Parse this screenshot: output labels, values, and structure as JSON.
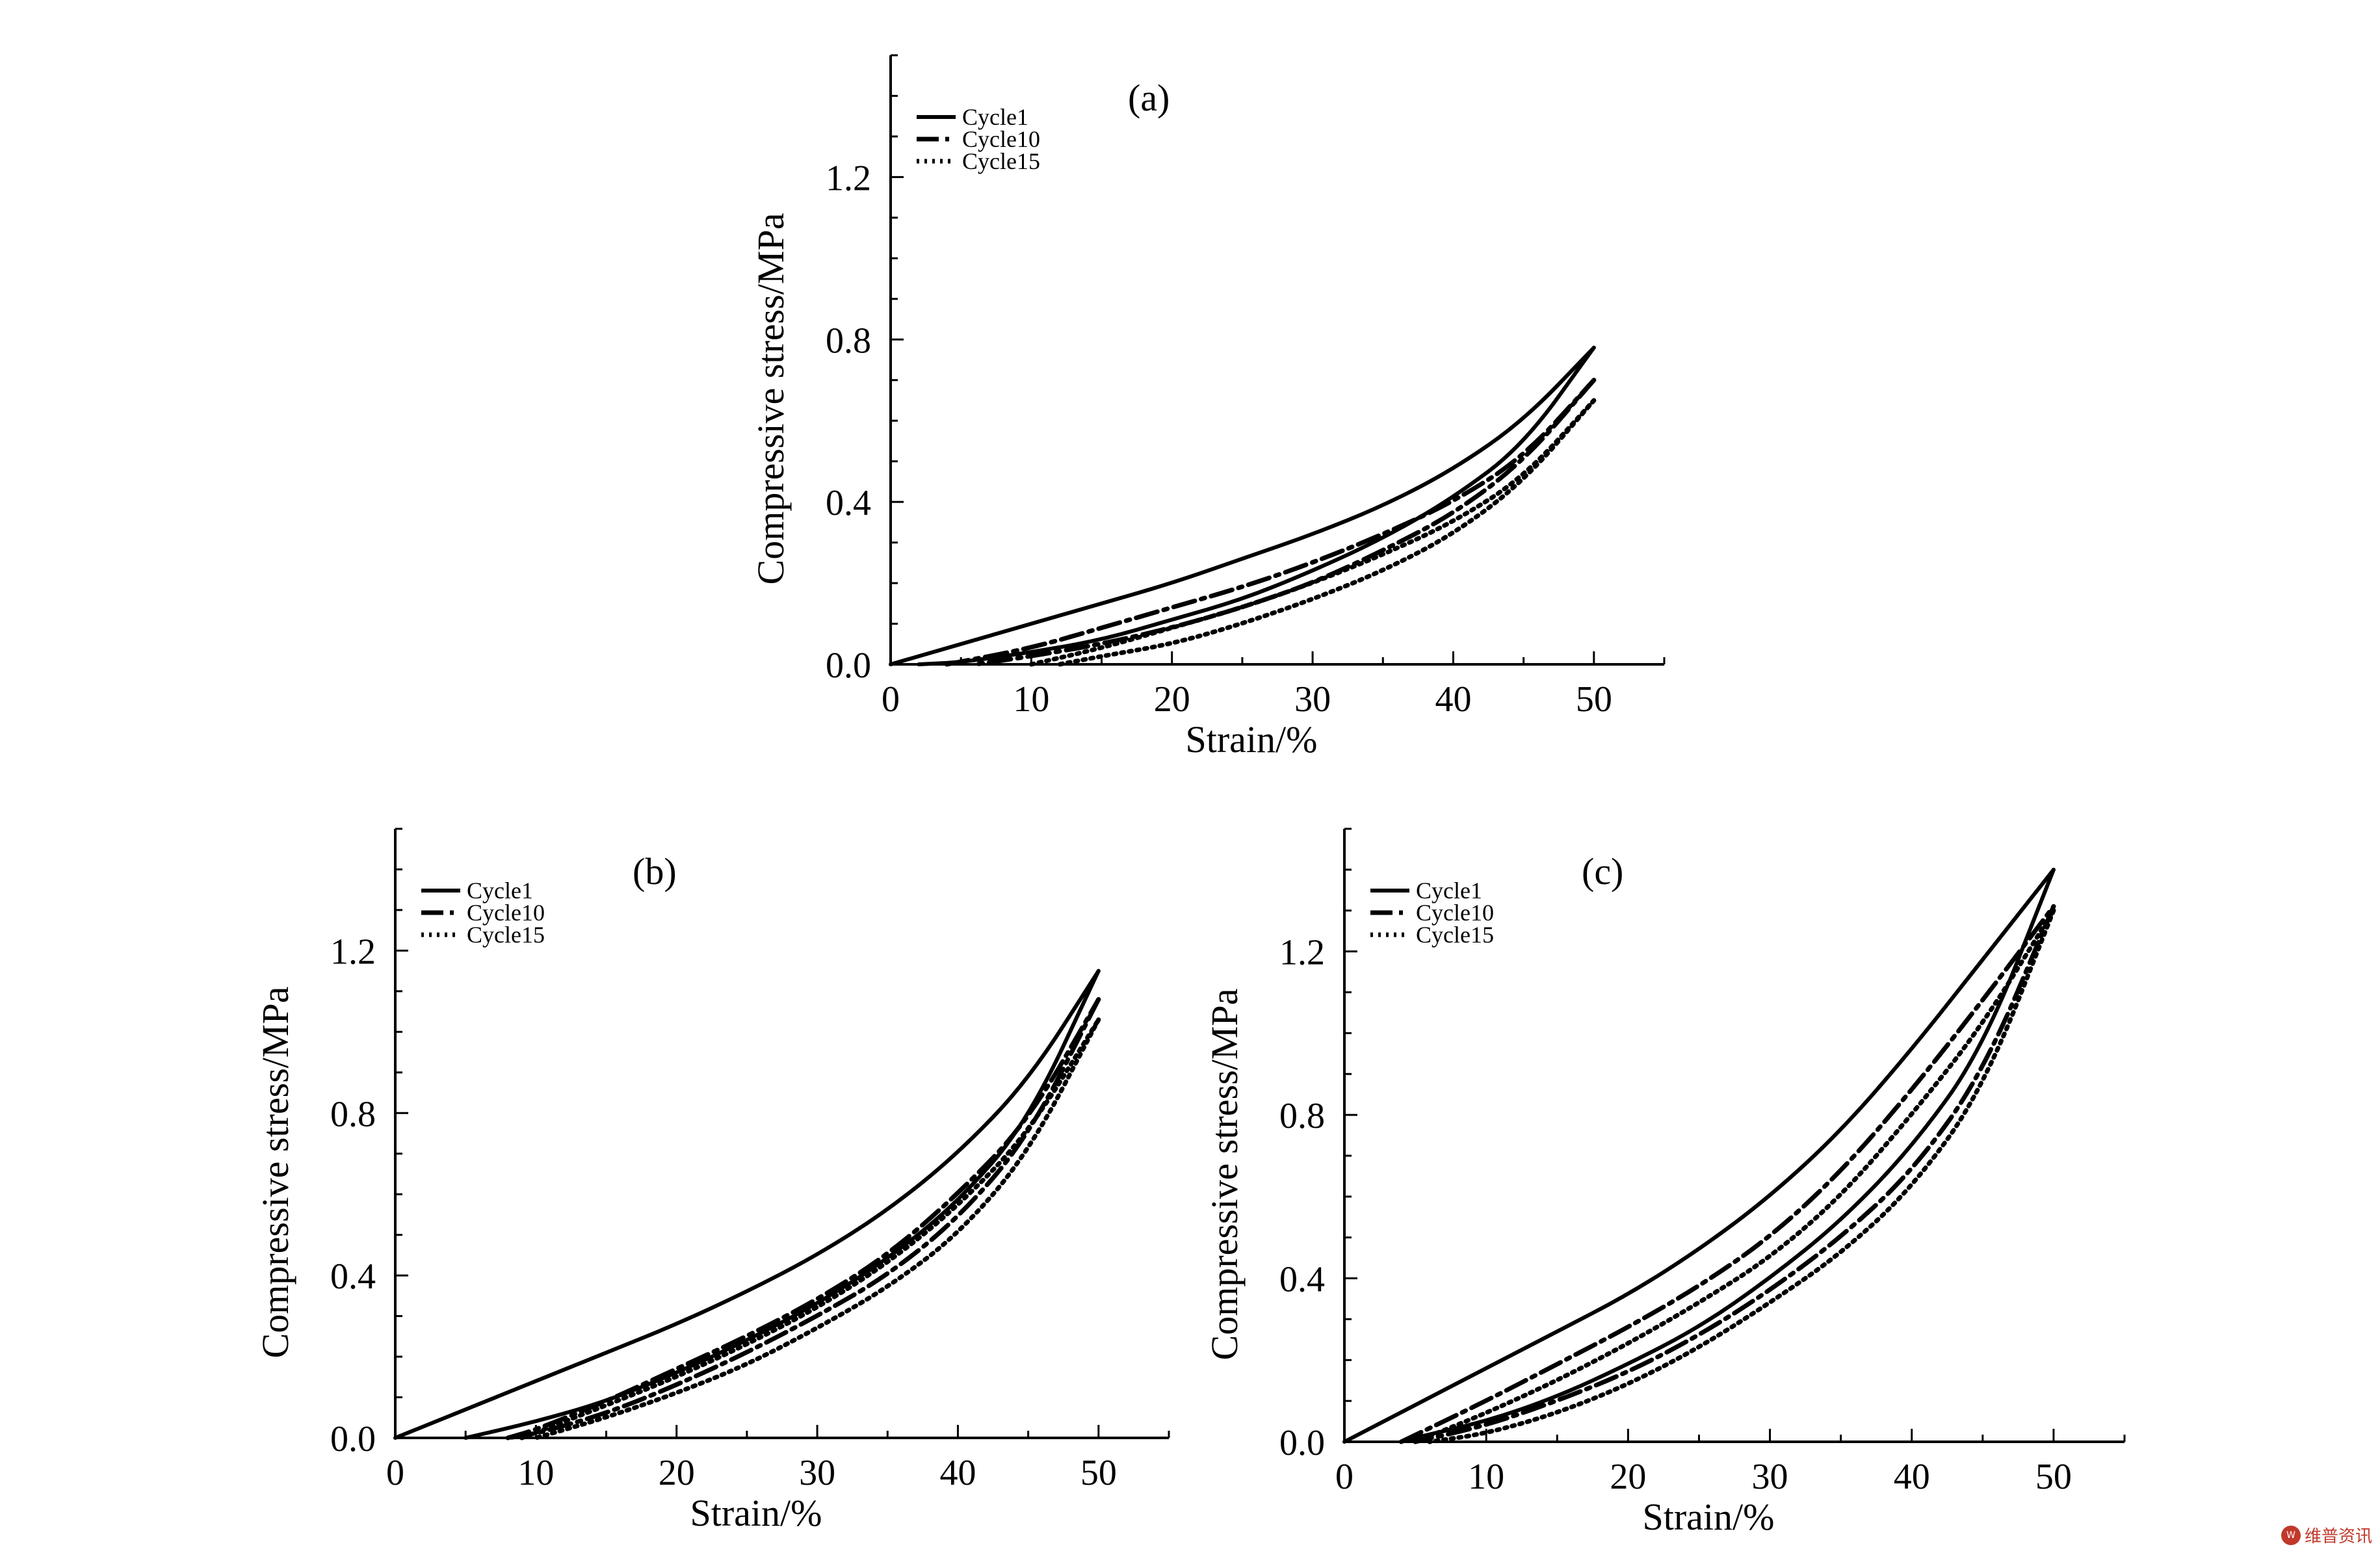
{
  "figure": {
    "watermark": {
      "badge": "W",
      "text": "维普资讯"
    }
  },
  "chart_data": [
    {
      "panel_label": "(a)",
      "type": "line",
      "xlabel": "Strain/%",
      "ylabel": "Compressive stress/MPa",
      "xlim": [
        0,
        55
      ],
      "ylim": [
        0,
        1.5
      ],
      "xticks": [
        0,
        10,
        20,
        30,
        40,
        50
      ],
      "yticks": [
        0.0,
        0.4,
        0.8,
        1.2
      ],
      "ytick_labels": [
        "0.0",
        "0.4",
        "0.8",
        "1.2"
      ],
      "grid": false,
      "legend_position": "top-left",
      "series": [
        {
          "name": "Cycle1",
          "style": "solid",
          "loading": {
            "x": [
              0,
              5,
              10,
              15,
              20,
              25,
              30,
              35,
              40,
              45,
              50
            ],
            "y": [
              0,
              0.05,
              0.1,
              0.15,
              0.2,
              0.26,
              0.32,
              0.39,
              0.48,
              0.6,
              0.78
            ]
          },
          "unloading": {
            "x": [
              50,
              45,
              40,
              35,
              30,
              25,
              20,
              15,
              10,
              5,
              2
            ],
            "y": [
              0.78,
              0.54,
              0.41,
              0.31,
              0.23,
              0.16,
              0.11,
              0.06,
              0.03,
              0.005,
              0
            ]
          }
        },
        {
          "name": "Cycle10",
          "style": "dash-dot",
          "loading": {
            "x": [
              4,
              10,
              15,
              20,
              25,
              30,
              35,
              40,
              45,
              50
            ],
            "y": [
              0,
              0.04,
              0.09,
              0.14,
              0.19,
              0.25,
              0.32,
              0.4,
              0.51,
              0.7
            ]
          },
          "unloading": {
            "x": [
              50,
              45,
              40,
              35,
              30,
              25,
              20,
              15,
              10,
              6
            ],
            "y": [
              0.7,
              0.5,
              0.37,
              0.28,
              0.2,
              0.14,
              0.09,
              0.05,
              0.02,
              0
            ]
          }
        },
        {
          "name": "Cycle15",
          "style": "dotted",
          "loading": {
            "x": [
              10,
              15,
              20,
              25,
              30,
              35,
              40,
              45,
              50
            ],
            "y": [
              0,
              0.04,
              0.09,
              0.14,
              0.2,
              0.27,
              0.35,
              0.46,
              0.65
            ]
          },
          "unloading": {
            "x": [
              50,
              45,
              40,
              35,
              30,
              25,
              20,
              15,
              12
            ],
            "y": [
              0.65,
              0.45,
              0.32,
              0.23,
              0.16,
              0.1,
              0.05,
              0.02,
              0
            ]
          }
        }
      ]
    },
    {
      "panel_label": "(b)",
      "type": "line",
      "xlabel": "Strain/%",
      "ylabel": "Compressive stress/MPa",
      "xlim": [
        0,
        55
      ],
      "ylim": [
        0,
        1.5
      ],
      "xticks": [
        0,
        10,
        20,
        30,
        40,
        50
      ],
      "yticks": [
        0.0,
        0.4,
        0.8,
        1.2
      ],
      "ytick_labels": [
        "0.0",
        "0.4",
        "0.8",
        "1.2"
      ],
      "grid": false,
      "legend_position": "top-left",
      "series": [
        {
          "name": "Cycle1",
          "style": "solid",
          "loading": {
            "x": [
              0,
              5,
              10,
              15,
              20,
              25,
              30,
              35,
              40,
              45,
              50
            ],
            "y": [
              0,
              0.07,
              0.14,
              0.21,
              0.28,
              0.36,
              0.45,
              0.56,
              0.7,
              0.88,
              1.15
            ]
          },
          "unloading": {
            "x": [
              50,
              45,
              40,
              35,
              30,
              25,
              20,
              15,
              10,
              5
            ],
            "y": [
              1.15,
              0.78,
              0.58,
              0.44,
              0.33,
              0.24,
              0.16,
              0.09,
              0.04,
              0
            ]
          }
        },
        {
          "name": "Cycle10",
          "style": "dash-dot",
          "loading": {
            "x": [
              8,
              10,
              15,
              20,
              25,
              30,
              35,
              40,
              45,
              50
            ],
            "y": [
              0,
              0.02,
              0.09,
              0.17,
              0.25,
              0.34,
              0.45,
              0.6,
              0.78,
              1.08
            ]
          },
          "unloading": {
            "x": [
              50,
              45,
              40,
              35,
              30,
              25,
              20,
              15,
              10,
              8
            ],
            "y": [
              1.08,
              0.74,
              0.54,
              0.4,
              0.3,
              0.21,
              0.13,
              0.06,
              0.01,
              0
            ]
          }
        },
        {
          "name": "Cycle15",
          "style": "dotted",
          "loading": {
            "x": [
              9,
              15,
              20,
              25,
              30,
              35,
              40,
              45,
              50
            ],
            "y": [
              0,
              0.08,
              0.15,
              0.23,
              0.32,
              0.43,
              0.57,
              0.75,
              1.03
            ]
          },
          "unloading": {
            "x": [
              50,
              45,
              40,
              35,
              30,
              25,
              20,
              15,
              10
            ],
            "y": [
              1.03,
              0.7,
              0.5,
              0.37,
              0.27,
              0.18,
              0.11,
              0.05,
              0
            ]
          }
        }
      ]
    },
    {
      "panel_label": "(c)",
      "type": "line",
      "xlabel": "Strain/%",
      "ylabel": "Compressive stress/MPa",
      "xlim": [
        0,
        55
      ],
      "ylim": [
        0,
        1.5
      ],
      "xticks": [
        0,
        10,
        20,
        30,
        40,
        50
      ],
      "yticks": [
        0.0,
        0.4,
        0.8,
        1.2
      ],
      "ytick_labels": [
        "0.0",
        "0.4",
        "0.8",
        "1.2"
      ],
      "grid": false,
      "legend_position": "top-left",
      "series": [
        {
          "name": "Cycle1",
          "style": "solid",
          "loading": {
            "x": [
              0,
              5,
              10,
              15,
              20,
              25,
              30,
              35,
              40,
              45,
              50
            ],
            "y": [
              0,
              0.09,
              0.18,
              0.27,
              0.36,
              0.47,
              0.6,
              0.76,
              0.96,
              1.18,
              1.4
            ]
          },
          "unloading": {
            "x": [
              50,
              45,
              40,
              35,
              30,
              25,
              20,
              15,
              10,
              5,
              4
            ],
            "y": [
              1.4,
              0.96,
              0.72,
              0.54,
              0.4,
              0.28,
              0.19,
              0.11,
              0.05,
              0.01,
              0
            ]
          }
        },
        {
          "name": "Cycle10",
          "style": "dash-dot",
          "loading": {
            "x": [
              4,
              10,
              15,
              20,
              25,
              30,
              35,
              40,
              45,
              50
            ],
            "y": [
              0,
              0.1,
              0.19,
              0.28,
              0.38,
              0.5,
              0.66,
              0.86,
              1.08,
              1.31
            ]
          },
          "unloading": {
            "x": [
              50,
              45,
              40,
              35,
              30,
              25,
              20,
              15,
              10,
              5
            ],
            "y": [
              1.31,
              0.9,
              0.66,
              0.5,
              0.37,
              0.26,
              0.17,
              0.1,
              0.04,
              0
            ]
          }
        },
        {
          "name": "Cycle15",
          "style": "dotted",
          "loading": {
            "x": [
              5,
              10,
              15,
              20,
              25,
              30,
              35,
              40,
              45,
              50
            ],
            "y": [
              0,
              0.07,
              0.15,
              0.24,
              0.34,
              0.45,
              0.6,
              0.8,
              1.02,
              1.3
            ]
          },
          "unloading": {
            "x": [
              50,
              45,
              40,
              35,
              30,
              25,
              20,
              15,
              10,
              6
            ],
            "y": [
              1.3,
              0.86,
              0.62,
              0.46,
              0.34,
              0.23,
              0.14,
              0.07,
              0.02,
              0
            ]
          }
        }
      ]
    }
  ]
}
